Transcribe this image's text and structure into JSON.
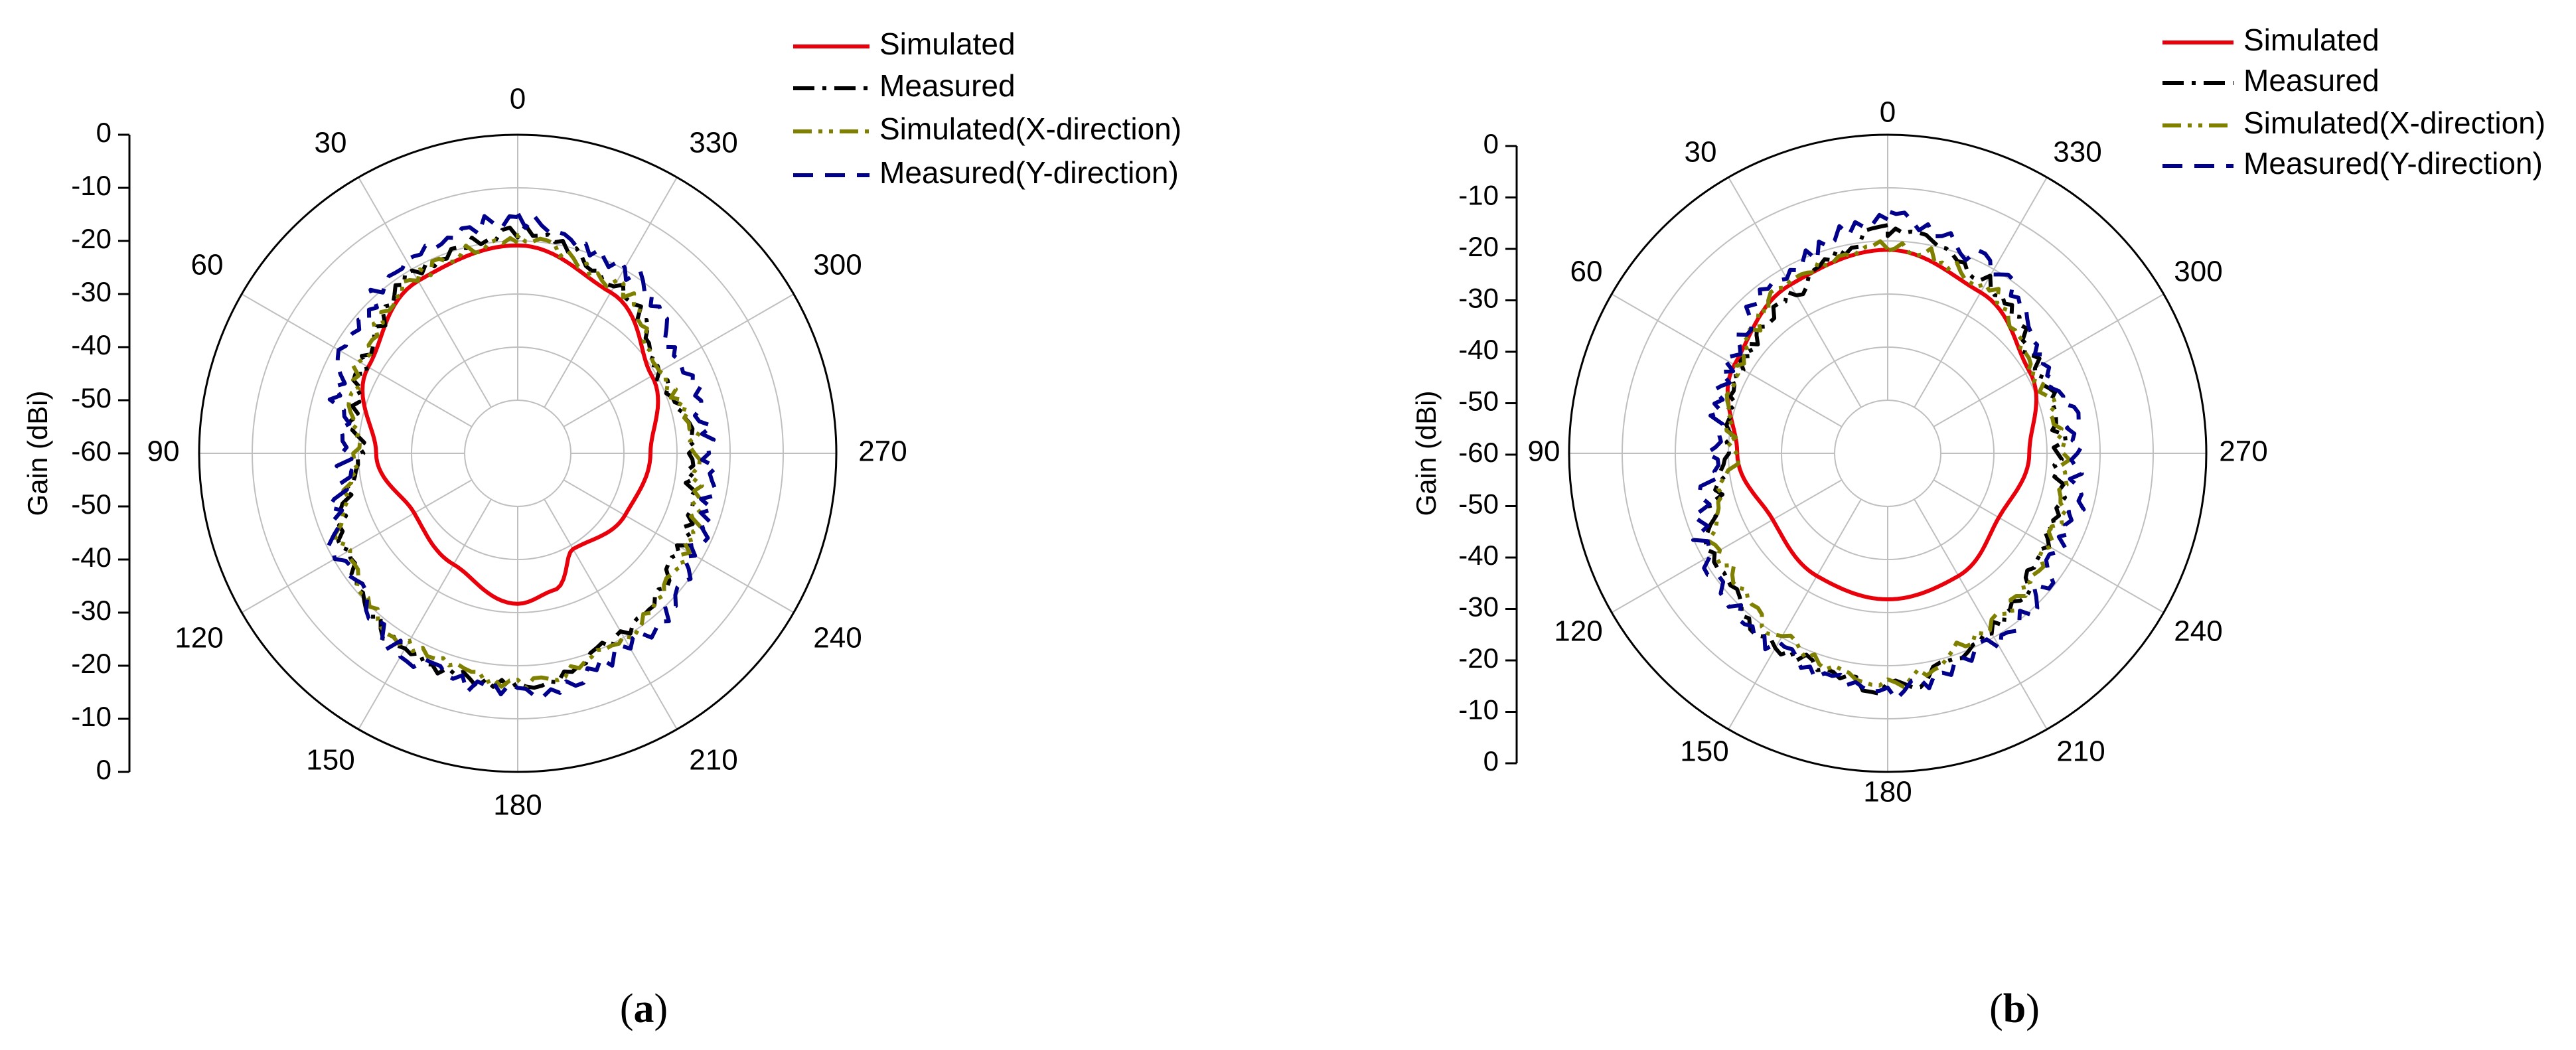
{
  "chart_data": [
    {
      "type": "polar-line",
      "title": "",
      "caption_open": "(",
      "caption_letter": "a",
      "caption_close": ")",
      "ylabel": "Gain (dBi)",
      "radial_range": [
        -60,
        0
      ],
      "radial_grid_step": 10,
      "gain_ticks": [
        "0",
        "-10",
        "-20",
        "-30",
        "-40",
        "-50",
        "-60",
        "-50",
        "-40",
        "-30",
        "-20",
        "-10",
        "0"
      ],
      "angle_labels": [
        "0",
        "30",
        "60",
        "90",
        "120",
        "150",
        "180",
        "210",
        "240",
        "270",
        "300",
        "330"
      ],
      "legend": [
        {
          "name": "Simulated",
          "color": "#e8000b",
          "style": "solid"
        },
        {
          "name": "Measured",
          "color": "#000000",
          "style": "dashdot"
        },
        {
          "name": "Simulated(X-direction)",
          "color": "#808000",
          "style": "dashdotdot"
        },
        {
          "name": "Measured(Y-direction)",
          "color": "#00008b",
          "style": "dash"
        }
      ],
      "series": [
        {
          "name": "Simulated",
          "theta": [
            0,
            30,
            60,
            90,
            120,
            150,
            180,
            195,
            210,
            240,
            270,
            300,
            330
          ],
          "gain": [
            -25,
            -27,
            -33,
            -40,
            -45,
            -43,
            -38,
            -40,
            -47,
            -44,
            -42,
            -37,
            -30
          ]
        },
        {
          "name": "Measured",
          "theta": [
            0,
            30,
            60,
            90,
            120,
            150,
            180,
            210,
            240,
            270,
            300,
            330
          ],
          "gain": [
            -22,
            -25,
            -32,
            -36,
            -27,
            -21,
            -19,
            -25,
            -29,
            -33,
            -35,
            -28
          ],
          "noise": 1.6
        },
        {
          "name": "Simulated(X-direction)",
          "theta": [
            0,
            30,
            60,
            90,
            120,
            150,
            180,
            210,
            240,
            270,
            300,
            330
          ],
          "gain": [
            -24,
            -26,
            -31,
            -36,
            -27,
            -22,
            -20,
            -24,
            -28,
            -32,
            -35,
            -28
          ],
          "noise": 1.4
        },
        {
          "name": "Measured(Y-direction)",
          "theta": [
            0,
            30,
            60,
            90,
            120,
            150,
            180,
            210,
            240,
            270,
            300,
            330
          ],
          "gain": [
            -19,
            -22,
            -27,
            -33,
            -26,
            -20,
            -18,
            -21,
            -26,
            -29,
            -30,
            -24
          ],
          "noise": 2.0
        }
      ]
    },
    {
      "type": "polar-line",
      "title": "",
      "caption_open": "(",
      "caption_letter": "b",
      "caption_close": ")",
      "ylabel": "Gain (dBi)",
      "radial_range": [
        -60,
        0
      ],
      "radial_grid_step": 10,
      "gain_ticks": [
        "0",
        "-10",
        "-20",
        "-30",
        "-40",
        "-50",
        "-60",
        "-50",
        "-40",
        "-30",
        "-20",
        "-10",
        "0"
      ],
      "angle_labels": [
        "0",
        "30",
        "60",
        "90",
        "120",
        "150",
        "180",
        "210",
        "240",
        "270",
        "300",
        "330"
      ],
      "legend": [
        {
          "name": "Simulated",
          "color": "#e8000b",
          "style": "solid"
        },
        {
          "name": "Measured",
          "color": "#000000",
          "style": "dashdot"
        },
        {
          "name": "Simulated(X-direction)",
          "color": "#808000",
          "style": "dashdotdot"
        },
        {
          "name": "Measured(Y-direction)",
          "color": "#00008b",
          "style": "dash"
        }
      ],
      "series": [
        {
          "name": "Simulated",
          "theta": [
            0,
            30,
            60,
            90,
            120,
            150,
            180,
            210,
            240,
            270,
            300,
            330
          ],
          "gain": [
            -26,
            -28,
            -32,
            -38,
            -42,
            -40,
            -39,
            -40,
            -43,
            -40,
            -35,
            -30
          ]
        },
        {
          "name": "Measured",
          "theta": [
            0,
            30,
            60,
            90,
            120,
            150,
            180,
            210,
            240,
            270,
            300,
            330
          ],
          "gain": [
            -22,
            -30,
            -34,
            -36,
            -27,
            -22,
            -19,
            -26,
            -31,
            -33,
            -33,
            -27
          ],
          "noise": 1.6
        },
        {
          "name": "Simulated(X-direction)",
          "theta": [
            0,
            30,
            60,
            90,
            120,
            150,
            180,
            210,
            240,
            270,
            300,
            330
          ],
          "gain": [
            -25,
            -28,
            -33,
            -37,
            -28,
            -24,
            -20,
            -27,
            -30,
            -32,
            -35,
            -28
          ],
          "noise": 1.5
        },
        {
          "name": "Measured(Y-direction)",
          "theta": [
            0,
            30,
            60,
            90,
            120,
            150,
            180,
            210,
            240,
            270,
            300,
            330
          ],
          "gain": [
            -19,
            -25,
            -31,
            -33,
            -25,
            -21,
            -18,
            -23,
            -27,
            -29,
            -31,
            -24
          ],
          "noise": 2.0
        }
      ]
    }
  ]
}
